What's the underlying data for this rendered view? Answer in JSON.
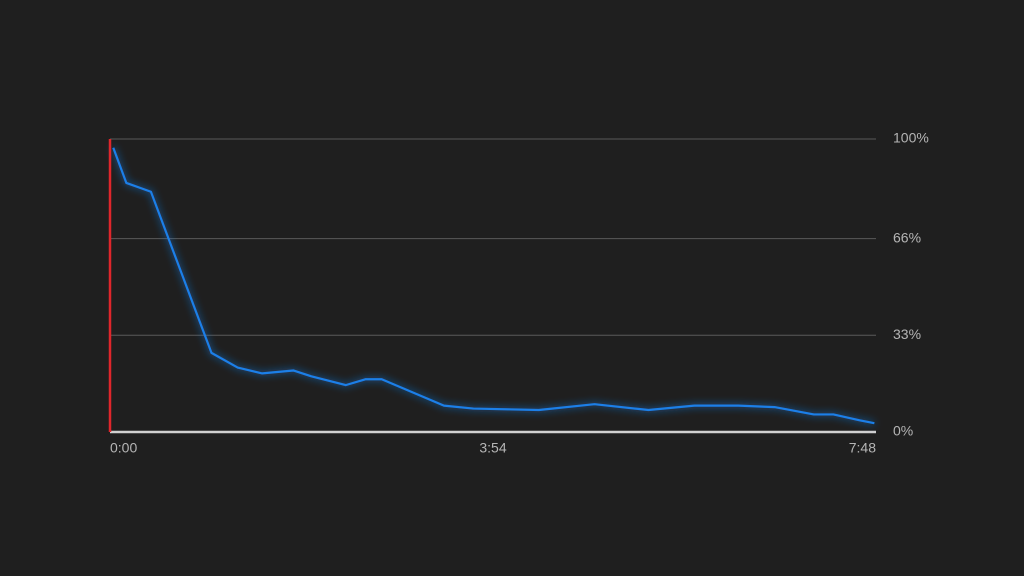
{
  "chart_data": {
    "type": "line",
    "x": [
      2,
      10,
      25,
      62,
      78,
      93,
      112,
      123,
      144,
      156,
      166,
      204,
      222,
      262,
      296,
      329,
      357,
      384,
      406,
      430,
      442,
      458,
      467
    ],
    "values": [
      97,
      85,
      82,
      27,
      22,
      20,
      21,
      19,
      16,
      18,
      18,
      9,
      8,
      7.5,
      9.5,
      7.5,
      9,
      9,
      8.5,
      6,
      6,
      4,
      3
    ],
    "color": "#1a7fe8",
    "xlim": [
      0,
      468
    ],
    "ylim": [
      0,
      100
    ],
    "xticks": [
      {
        "value": 0,
        "label": "0:00"
      },
      {
        "value": 234,
        "label": "3:54"
      },
      {
        "value": 468,
        "label": "7:48"
      }
    ],
    "yticks": [
      {
        "value": 0,
        "label": "0%"
      },
      {
        "value": 33,
        "label": "33%"
      },
      {
        "value": 66,
        "label": "66%"
      },
      {
        "value": 100,
        "label": "100%"
      }
    ],
    "grid": true
  }
}
